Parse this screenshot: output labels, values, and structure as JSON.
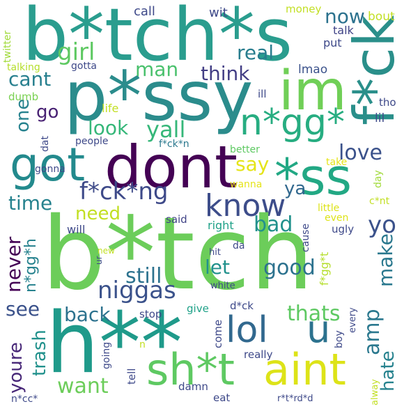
{
  "background": "#ffffff",
  "words": [
    {
      "text": "b*tch*s",
      "color": "#2a9d8e",
      "vertical": false
    },
    {
      "text": "f*ck",
      "color": "#2a8f8a",
      "vertical": true
    },
    {
      "text": "p*ssy",
      "color": "#2b8c8c",
      "vertical": false
    },
    {
      "text": "im",
      "color": "#70cf57",
      "vertical": false
    },
    {
      "text": "dont",
      "color": "#440154",
      "vertical": false
    },
    {
      "text": "got",
      "color": "#238a8d",
      "vertical": false
    },
    {
      "text": "n*gg*",
      "color": "#27ad81",
      "vertical": false
    },
    {
      "text": "*ss",
      "color": "#22a884",
      "vertical": false
    },
    {
      "text": "know",
      "color": "#3d4d8a",
      "vertical": false
    },
    {
      "text": "f*ck*ng",
      "color": "#3e4a89",
      "vertical": false
    },
    {
      "text": "b*tch",
      "color": "#6ccd5a",
      "vertical": false
    },
    {
      "text": "h**",
      "color": "#1f9a8a",
      "vertical": false
    },
    {
      "text": "sh*t",
      "color": "#5ec962",
      "vertical": false
    },
    {
      "text": "aint",
      "color": "#dde318",
      "vertical": false
    },
    {
      "text": "lol",
      "color": "#31688e",
      "vertical": false
    },
    {
      "text": "u",
      "color": "#2c728e",
      "vertical": false
    },
    {
      "text": "niggas",
      "color": "#3b528b",
      "vertical": false
    },
    {
      "text": "girl",
      "color": "#5ec962",
      "vertical": false
    },
    {
      "text": "man",
      "color": "#4ac16d",
      "vertical": false
    },
    {
      "text": "real",
      "color": "#287d8e",
      "vertical": false
    },
    {
      "text": "now",
      "color": "#2c728e",
      "vertical": false
    },
    {
      "text": "think",
      "color": "#433e85",
      "vertical": false
    },
    {
      "text": "cant",
      "color": "#277f8e",
      "vertical": false
    },
    {
      "text": "go",
      "color": "#482173",
      "vertical": false
    },
    {
      "text": "one",
      "color": "#26828e",
      "vertical": true
    },
    {
      "text": "look",
      "color": "#35b779",
      "vertical": false
    },
    {
      "text": "yall",
      "color": "#35b779",
      "vertical": false
    },
    {
      "text": "love",
      "color": "#3b528b",
      "vertical": false
    },
    {
      "text": "say",
      "color": "#e5e419",
      "vertical": false
    },
    {
      "text": "ya",
      "color": "#31688e",
      "vertical": false
    },
    {
      "text": "time",
      "color": "#26828e",
      "vertical": false
    },
    {
      "text": "need",
      "color": "#c2df23",
      "vertical": false
    },
    {
      "text": "bad",
      "color": "#21918c",
      "vertical": false
    },
    {
      "text": "yo",
      "color": "#3b528b",
      "vertical": false
    },
    {
      "text": "good",
      "color": "#2c728e",
      "vertical": false
    },
    {
      "text": "still",
      "color": "#2c728e",
      "vertical": false
    },
    {
      "text": "let",
      "color": "#21918c",
      "vertical": false
    },
    {
      "text": "never",
      "color": "#440154",
      "vertical": true
    },
    {
      "text": "n*gg*h",
      "color": "#26828e",
      "vertical": true
    },
    {
      "text": "make",
      "color": "#2a788e",
      "vertical": true
    },
    {
      "text": "see",
      "color": "#3b528b",
      "vertical": false
    },
    {
      "text": "back",
      "color": "#2c728e",
      "vertical": false
    },
    {
      "text": "thats",
      "color": "#5ec962",
      "vertical": false
    },
    {
      "text": "amp",
      "color": "#2a788e",
      "vertical": true
    },
    {
      "text": "youre",
      "color": "#482878",
      "vertical": true
    },
    {
      "text": "trash",
      "color": "#21918c",
      "vertical": true
    },
    {
      "text": "want",
      "color": "#6ccd5a",
      "vertical": false
    },
    {
      "text": "hate",
      "color": "#26828e",
      "vertical": true
    },
    {
      "text": "call",
      "color": "#3e4989",
      "vertical": false
    },
    {
      "text": "wit",
      "color": "#3e4989",
      "vertical": false
    },
    {
      "text": "money",
      "color": "#c2df23",
      "vertical": false
    },
    {
      "text": "bout",
      "color": "#c2df23",
      "vertical": false
    },
    {
      "text": "talk",
      "color": "#414487",
      "vertical": false
    },
    {
      "text": "put",
      "color": "#3e4989",
      "vertical": false
    },
    {
      "text": "twitter",
      "color": "#a0da39",
      "vertical": true
    },
    {
      "text": "gotta",
      "color": "#3e4989",
      "vertical": false
    },
    {
      "text": "talking",
      "color": "#b5de2b",
      "vertical": false
    },
    {
      "text": "lmao",
      "color": "#3b528b",
      "vertical": false
    },
    {
      "text": "dumb",
      "color": "#7ad151",
      "vertical": false
    },
    {
      "text": "ill",
      "color": "#3e4989",
      "vertical": false
    },
    {
      "text": "tho",
      "color": "#3e4989",
      "vertical": false
    },
    {
      "text": "lil",
      "color": "#3e4989",
      "vertical": false
    },
    {
      "text": "life",
      "color": "#c2df23",
      "vertical": false
    },
    {
      "text": "dat",
      "color": "#3e4989",
      "vertical": true
    },
    {
      "text": "people",
      "color": "#3e4989",
      "vertical": false
    },
    {
      "text": "f*ck*n",
      "color": "#2a788e",
      "vertical": false
    },
    {
      "text": "better",
      "color": "#5ec962",
      "vertical": false
    },
    {
      "text": "take",
      "color": "#e5e419",
      "vertical": false
    },
    {
      "text": "gonna",
      "color": "#3e4989",
      "vertical": false
    },
    {
      "text": "wanna",
      "color": "#e5e419",
      "vertical": false
    },
    {
      "text": "day",
      "color": "#a0da39",
      "vertical": true
    },
    {
      "text": "c*nt",
      "color": "#c2df23",
      "vertical": false
    },
    {
      "text": "little",
      "color": "#dde318",
      "vertical": false
    },
    {
      "text": "even",
      "color": "#dde318",
      "vertical": false
    },
    {
      "text": "will",
      "color": "#3e4989",
      "vertical": false
    },
    {
      "text": "said",
      "color": "#414487",
      "vertical": false
    },
    {
      "text": "right",
      "color": "#1fa188",
      "vertical": false
    },
    {
      "text": "ugly",
      "color": "#3e4989",
      "vertical": false
    },
    {
      "text": "cause",
      "color": "#3e4989",
      "vertical": true
    },
    {
      "text": "da",
      "color": "#3e4989",
      "vertical": false
    },
    {
      "text": "new",
      "color": "#c2df23",
      "vertical": false
    },
    {
      "text": "ur",
      "color": "#3e4989",
      "vertical": true
    },
    {
      "text": "hit",
      "color": "#3e4989",
      "vertical": false
    },
    {
      "text": "white",
      "color": "#3e4989",
      "vertical": false
    },
    {
      "text": "f*gg*t",
      "color": "#b5de2b",
      "vertical": true
    },
    {
      "text": "give",
      "color": "#1fa188",
      "vertical": false
    },
    {
      "text": "stop",
      "color": "#3e4989",
      "vertical": false
    },
    {
      "text": "d*ck",
      "color": "#3e4989",
      "vertical": false
    },
    {
      "text": "every",
      "color": "#3e4989",
      "vertical": true
    },
    {
      "text": "boy",
      "color": "#3e4989",
      "vertical": true
    },
    {
      "text": "come",
      "color": "#3e4989",
      "vertical": true
    },
    {
      "text": "really",
      "color": "#3e4989",
      "vertical": false
    },
    {
      "text": "n",
      "color": "#c2df23",
      "vertical": false
    },
    {
      "text": "going",
      "color": "#3e4989",
      "vertical": true
    },
    {
      "text": "tell",
      "color": "#3e4989",
      "vertical": true
    },
    {
      "text": "damn",
      "color": "#3e4989",
      "vertical": false
    },
    {
      "text": "n*cc*",
      "color": "#3e4989",
      "vertical": false
    },
    {
      "text": "eat",
      "color": "#3e4989",
      "vertical": false
    },
    {
      "text": "r*t*rd*d",
      "color": "#3e4989",
      "vertical": false
    },
    {
      "text": "alway",
      "color": "#c2df23",
      "vertical": true
    }
  ]
}
